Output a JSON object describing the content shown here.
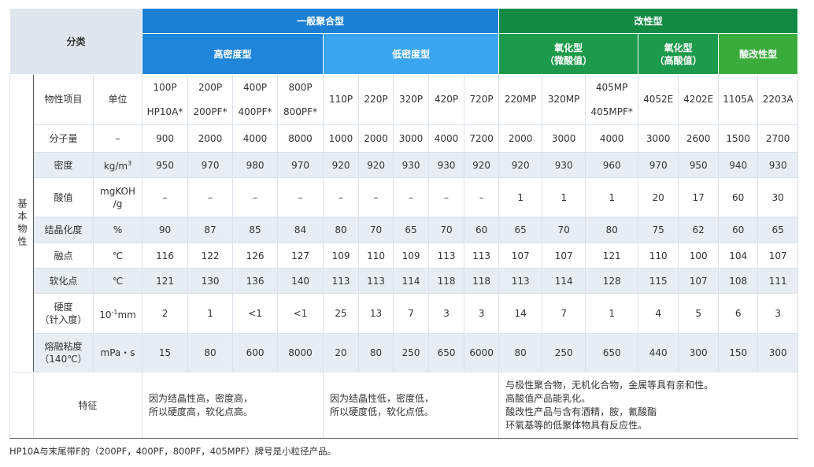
{
  "header": {
    "category": "分类",
    "item_label": "物性项目",
    "unit_label": "单位",
    "side_label": "基本物性"
  },
  "groups": [
    {
      "name": "一般聚合型",
      "subs": [
        {
          "name": [
            "高密度型"
          ],
          "products": [
            [
              "100P",
              "HP10A*"
            ],
            [
              "200P",
              "200PF*"
            ],
            [
              "400P",
              "400PF*"
            ],
            [
              "800P",
              "800PF*"
            ]
          ],
          "feature": [
            "因为结晶性高，密度高，",
            "所以硬度高，软化点高。"
          ]
        },
        {
          "name": [
            "低密度型"
          ],
          "products": [
            [
              "110P"
            ],
            [
              "220P"
            ],
            [
              "320P"
            ],
            [
              "420P"
            ],
            [
              "720P"
            ]
          ],
          "feature": [
            "因为结晶性低，密度低，",
            "所以硬度低，软化点低。"
          ]
        }
      ]
    },
    {
      "name": "改性型",
      "subs": [
        {
          "name": [
            "氧化型",
            "（微酸值）"
          ],
          "products": [
            [
              "220MP"
            ],
            [
              "320MP"
            ],
            [
              "405MP",
              "405MPF*"
            ]
          ]
        },
        {
          "name": [
            "氧化型",
            "（高酸值）"
          ],
          "products": [
            [
              "4052E"
            ],
            [
              "4202E"
            ]
          ]
        },
        {
          "name": [
            "酸改性型"
          ],
          "products": [
            [
              "1105A"
            ],
            [
              "2203A"
            ]
          ]
        }
      ],
      "feature": [
        "与极性聚合物，无机化合物，金属等具有亲和性。",
        "高酸值产品能乳化。",
        "酸改性产品与含有酒精，胺，氰酸酯",
        "环氧基等的低聚体物具有反应性。"
      ]
    }
  ],
  "rows": [
    {
      "item": [
        "分子量"
      ],
      "unit": [
        "–"
      ],
      "values": [
        900,
        2000,
        4000,
        8000,
        1000,
        2000,
        3000,
        4000,
        7200,
        2000,
        3000,
        4000,
        3000,
        2600,
        1500,
        2700
      ]
    },
    {
      "item": [
        "密度"
      ],
      "unit": [
        {
          "base": "kg/m",
          "sup": "3"
        }
      ],
      "values": [
        950,
        970,
        980,
        970,
        920,
        920,
        930,
        930,
        920,
        920,
        930,
        960,
        970,
        950,
        940,
        930
      ]
    },
    {
      "item": [
        "酸值"
      ],
      "unit": [
        "mgKOH",
        "/g"
      ],
      "values": [
        "–",
        "–",
        "–",
        "–",
        "–",
        "–",
        "–",
        "–",
        "–",
        1,
        1,
        1,
        20,
        17,
        60,
        30
      ]
    },
    {
      "item": [
        "结晶化度"
      ],
      "unit": [
        "%"
      ],
      "values": [
        90,
        87,
        85,
        84,
        80,
        70,
        65,
        70,
        60,
        65,
        70,
        80,
        75,
        62,
        60,
        65
      ]
    },
    {
      "item": [
        "融点"
      ],
      "unit": [
        "℃"
      ],
      "values": [
        116,
        122,
        126,
        127,
        109,
        110,
        109,
        113,
        113,
        107,
        107,
        121,
        110,
        100,
        104,
        107
      ]
    },
    {
      "item": [
        "软化点"
      ],
      "unit": [
        "℃"
      ],
      "values": [
        121,
        130,
        136,
        140,
        113,
        113,
        114,
        118,
        118,
        113,
        114,
        128,
        115,
        107,
        108,
        111
      ]
    },
    {
      "item": [
        "硬度",
        "（针入度）"
      ],
      "unit": [
        {
          "base": "10",
          "sup": "-1",
          "after": "mm"
        }
      ],
      "values": [
        2,
        1,
        "<1",
        "<1",
        25,
        13,
        7,
        3,
        3,
        14,
        7,
        1,
        4,
        5,
        6,
        3
      ]
    },
    {
      "item": [
        "熔融粘度",
        "（140℃）"
      ],
      "unit": [
        "mPa・s"
      ],
      "values": [
        15,
        80,
        600,
        8000,
        20,
        80,
        250,
        650,
        6000,
        80,
        250,
        650,
        440,
        300,
        150,
        300
      ]
    }
  ],
  "feature_label": "特征",
  "footnote": "HP10A与末尾带F的（200PF，400PF，800PF，405MPF）牌号是小粒径产品。"
}
